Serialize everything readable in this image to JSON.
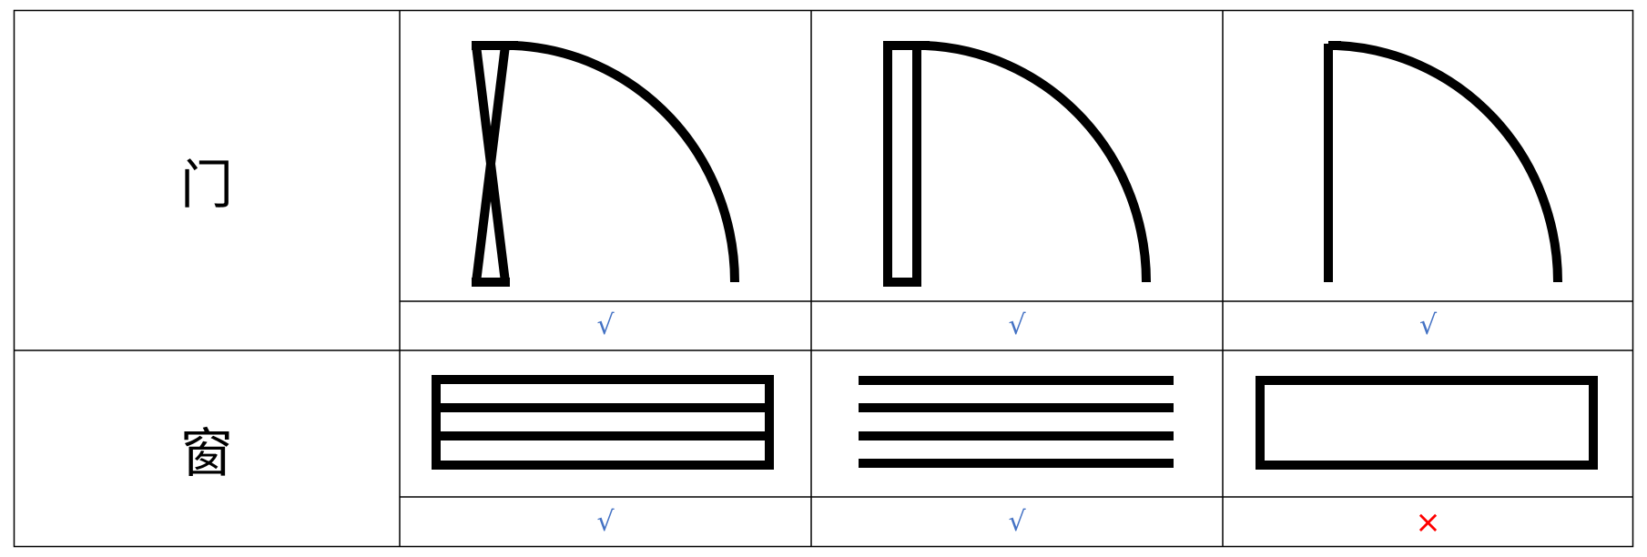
{
  "rows": [
    {
      "label": "门",
      "marks": [
        "√",
        "√",
        "√"
      ]
    },
    {
      "label": "窗",
      "marks": [
        "√",
        "√",
        "×"
      ]
    }
  ],
  "colors": {
    "check": "#4472c4",
    "cross": "#ff0000",
    "line": "#000000"
  },
  "icons": [
    "door-symbol-hourglass-leaf-icon",
    "door-symbol-rectangular-leaf-icon",
    "door-symbol-single-line-leaf-icon",
    "window-symbol-framed-four-lines-icon",
    "window-symbol-four-lines-icon",
    "window-symbol-empty-rectangle-icon"
  ]
}
